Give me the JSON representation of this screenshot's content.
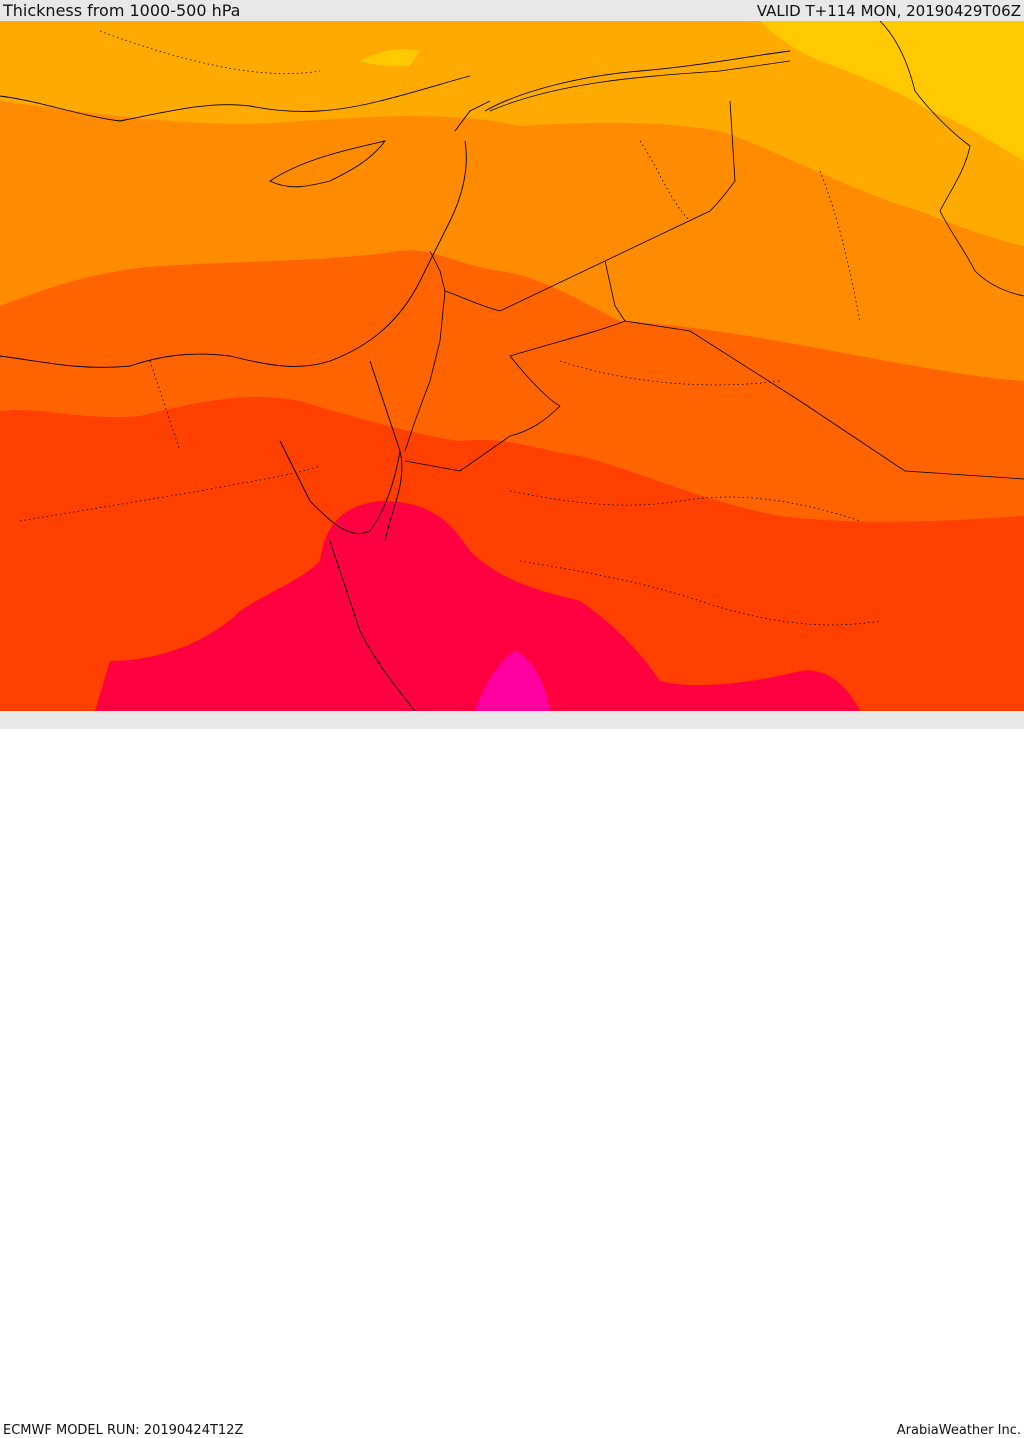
{
  "header": {
    "title": "Thickness from 1000-500 hPa",
    "valid": "VALID T+114 MON, 20190429T06Z"
  },
  "footer": {
    "model_run": "ECMWF MODEL RUN: 20190424T12Z",
    "credit": "ArabiaWeather Inc."
  },
  "colors": {
    "band_yellow": "#ffc800",
    "band_light_orange": "#ffaa00",
    "band_orange": "#ff8c00",
    "band_dark_orange": "#ff6400",
    "band_red_orange": "#ff4000",
    "band_red": "#ff0040",
    "band_magenta": "#ff00a0",
    "borders": "#000000"
  }
}
